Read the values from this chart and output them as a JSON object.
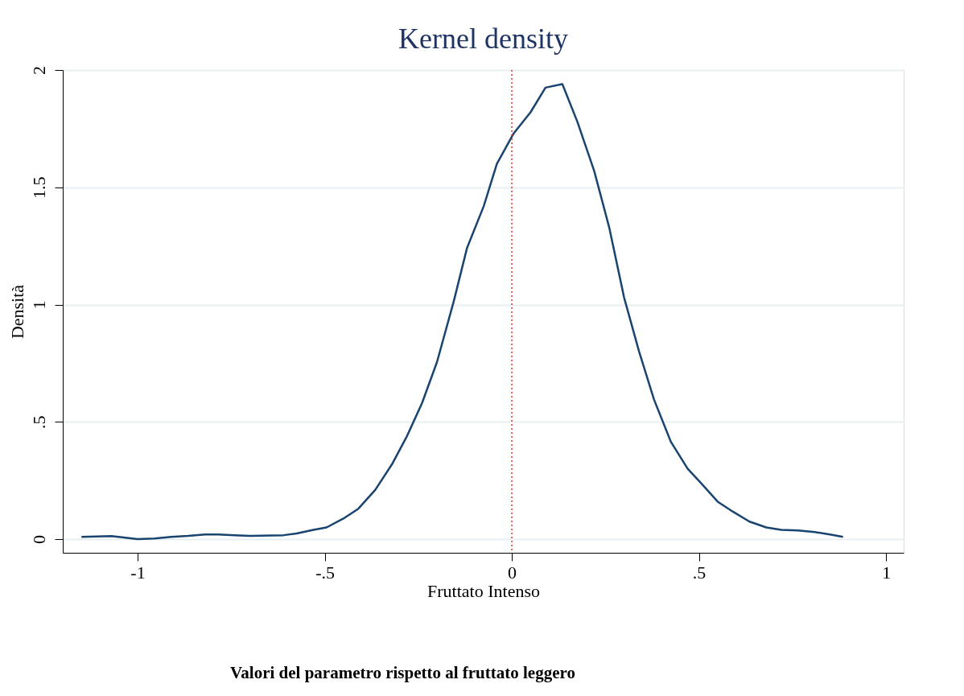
{
  "chart_data": {
    "type": "line",
    "title": "Kernel density",
    "xlabel": "Fruttato Intenso",
    "ylabel": "Densità",
    "annotations": [
      "Valori del parametro rispetto al fruttato leggero"
    ],
    "x": [
      -1.15,
      -1.07,
      -1.0,
      -0.955,
      -0.91,
      -0.865,
      -0.82,
      -0.785,
      -0.74,
      -0.7,
      -0.61,
      -0.575,
      -0.53,
      -0.495,
      -0.45,
      -0.41,
      -0.365,
      -0.32,
      -0.28,
      -0.24,
      -0.2,
      -0.155,
      -0.12,
      -0.075,
      -0.04,
      0.005,
      0.05,
      0.09,
      0.135,
      0.175,
      0.22,
      0.26,
      0.3,
      0.34,
      0.38,
      0.425,
      0.47,
      0.505,
      0.55,
      0.59,
      0.635,
      0.68,
      0.72,
      0.765,
      0.81,
      0.85,
      0.885
    ],
    "series": [
      {
        "color": "#1a4470",
        "values": [
          0.01,
          0.013,
          0.0,
          0.003,
          0.01,
          0.014,
          0.02,
          0.02,
          0.017,
          0.014,
          0.017,
          0.024,
          0.04,
          0.05,
          0.088,
          0.13,
          0.21,
          0.32,
          0.44,
          0.58,
          0.755,
          1.015,
          1.24,
          1.42,
          1.6,
          1.73,
          1.82,
          1.925,
          1.94,
          1.78,
          1.57,
          1.33,
          1.03,
          0.8,
          0.595,
          0.415,
          0.3,
          0.24,
          0.16,
          0.118,
          0.075,
          0.05,
          0.04,
          0.037,
          0.03,
          0.02,
          0.01
        ]
      }
    ],
    "xlim": [
      -1.2,
      1.047
    ],
    "ylim": [
      -0.058,
      2.0
    ],
    "xticks": [
      {
        "value": -1,
        "label": "-1"
      },
      {
        "value": -0.5,
        "label": "-.5"
      },
      0,
      {
        "value": 0.5,
        "label": ".5"
      },
      1
    ],
    "yticks": [
      0,
      {
        "value": 0.5,
        "label": ".5"
      },
      1,
      1.5,
      2
    ],
    "ref_lines": [
      {
        "axis": "x",
        "value": 0,
        "color": "#e8382f",
        "line_style": "dotted"
      }
    ],
    "grid": "y",
    "line_style": "solid",
    "marker": "none"
  }
}
